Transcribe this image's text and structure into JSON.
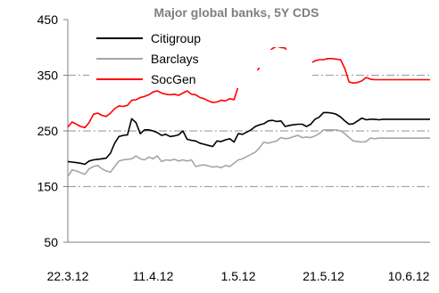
{
  "chart_data": {
    "type": "line",
    "title": "Major global banks, 5Y CDS",
    "xlabel": "",
    "ylabel": "",
    "ylim": [
      50,
      450
    ],
    "yticks": [
      50,
      150,
      250,
      350,
      450
    ],
    "grid": "horizontal dashed at 150, 250, 350",
    "legend_position": "top-left",
    "xtick_labels": [
      "22.3.12",
      "11.4.12",
      "1.5.12",
      "21.5.12",
      "10.6.12"
    ],
    "xtick_positions": [
      0,
      20,
      40,
      60,
      80
    ],
    "x": [
      0,
      1,
      2,
      3,
      4,
      5,
      6,
      7,
      8,
      9,
      10,
      11,
      12,
      13,
      14,
      15,
      16,
      17,
      18,
      19,
      20,
      21,
      22,
      23,
      24,
      25,
      26,
      27,
      28,
      29,
      30,
      31,
      32,
      33,
      34,
      35,
      36,
      37,
      38,
      39,
      40,
      41,
      42,
      43,
      44,
      45,
      46,
      47,
      48,
      49,
      50,
      51,
      52,
      53,
      54,
      55,
      56,
      57,
      58,
      59,
      60,
      61,
      62,
      63,
      64,
      65,
      66,
      67,
      68,
      69,
      70,
      71,
      72,
      73,
      74,
      75,
      76,
      77,
      78,
      79,
      80,
      81,
      82,
      83,
      84,
      85
    ],
    "series": [
      {
        "name": "Citigroup",
        "color": "#000000",
        "values": [
          195,
          194,
          193,
          192,
          190,
          196,
          198,
          199,
          200,
          201,
          210,
          228,
          240,
          242,
          243,
          272,
          265,
          245,
          252,
          252,
          250,
          247,
          242,
          244,
          240,
          241,
          243,
          250,
          235,
          233,
          232,
          228,
          226,
          224,
          222,
          232,
          231,
          234,
          236,
          230,
          245,
          244,
          248,
          252,
          258,
          261,
          263,
          268,
          269,
          267,
          268,
          258,
          260,
          261,
          262,
          262,
          258,
          262,
          271,
          275,
          283,
          283,
          282,
          280,
          275,
          268,
          262,
          263,
          268,
          273,
          270,
          271,
          271,
          270,
          271,
          271,
          271,
          271,
          271,
          271,
          271,
          271,
          271,
          271,
          271,
          271
        ]
      },
      {
        "name": "Barclays",
        "color": "#a6a6a6",
        "values": [
          168,
          180,
          178,
          175,
          172,
          182,
          186,
          188,
          182,
          178,
          176,
          186,
          196,
          198,
          199,
          200,
          205,
          200,
          198,
          203,
          200,
          205,
          195,
          198,
          197,
          199,
          196,
          198,
          196,
          198,
          186,
          188,
          189,
          187,
          185,
          186,
          184,
          188,
          186,
          192,
          198,
          200,
          204,
          208,
          212,
          220,
          230,
          228,
          230,
          232,
          238,
          236,
          237,
          240,
          242,
          238,
          239,
          238,
          241,
          245,
          252,
          252,
          252,
          252,
          250,
          245,
          238,
          232,
          231,
          230,
          231,
          237,
          236,
          237,
          237,
          237,
          237,
          237,
          237,
          237,
          237,
          237,
          237,
          237,
          237,
          237
        ]
      },
      {
        "name": "SocGen",
        "color": "#ff0000",
        "values": [
          257,
          266,
          262,
          258,
          256,
          265,
          280,
          282,
          278,
          276,
          282,
          290,
          295,
          294,
          296,
          305,
          306,
          310,
          312,
          315,
          320,
          322,
          318,
          316,
          315,
          316,
          314,
          318,
          322,
          316,
          315,
          310,
          308,
          304,
          301,
          302,
          305,
          304,
          308,
          306,
          330,
          335,
          340,
          345,
          352,
          365,
          375,
          390,
          398,
          402,
          400,
          399,
          382,
          380,
          378,
          376,
          374,
          372,
          376,
          378,
          378,
          380,
          380,
          379,
          378,
          362,
          338,
          336,
          337,
          340,
          346,
          343,
          342,
          342,
          342,
          342,
          342,
          342,
          342,
          342,
          342,
          342,
          342,
          342,
          342,
          342
        ]
      }
    ]
  }
}
